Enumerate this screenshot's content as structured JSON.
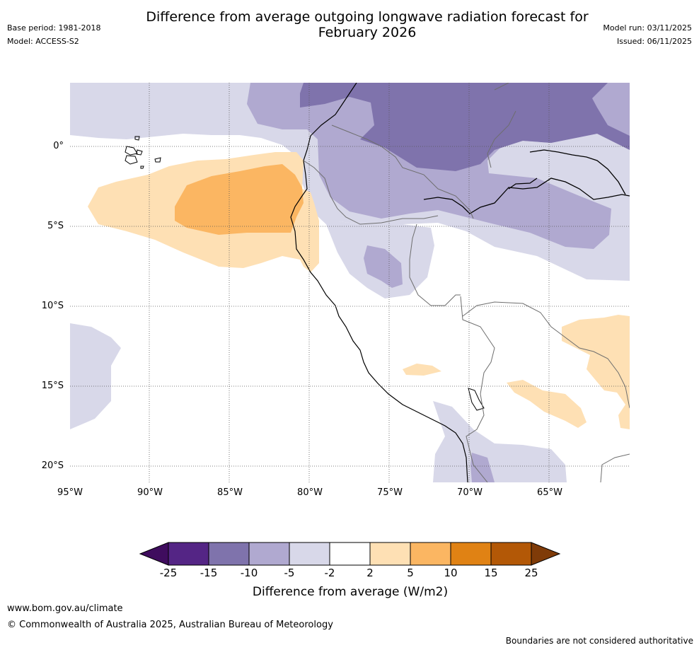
{
  "header": {
    "title_line1": "Difference from average outgoing longwave radiation forecast for",
    "title_line2": "February 2026",
    "base_period": "Base period: 1981-2018",
    "model": "Model: ACCESS-S2",
    "model_run": "Model run: 03/11/2025",
    "issued": "Issued: 06/11/2025"
  },
  "map": {
    "region": "Eastern tropical Pacific and western South America",
    "lon_ticks": [
      "95°W",
      "90°W",
      "85°W",
      "80°W",
      "75°W",
      "70°W",
      "65°W"
    ],
    "lat_ticks": [
      "0°",
      "5°S",
      "10°S",
      "15°S",
      "20°S"
    ]
  },
  "colorbar": {
    "label": "Difference from average (W/m2)",
    "ticks": [
      "-25",
      "-15",
      "-10",
      "-5",
      "-2",
      "2",
      "5",
      "10",
      "15",
      "25"
    ],
    "colors": [
      "#3f0c5e",
      "#542585",
      "#7f73ac",
      "#b0a9d0",
      "#d8d8e9",
      "#ffffff",
      "#fee0b4",
      "#fbb662",
      "#e08214",
      "#b35806",
      "#7f3b08"
    ]
  },
  "footer": {
    "website": "www.bom.gov.au/climate",
    "copyright": "© Commonwealth of Australia 2025, Australian Bureau of Meteorology",
    "disclaimer": "Boundaries are not considered authoritative"
  }
}
